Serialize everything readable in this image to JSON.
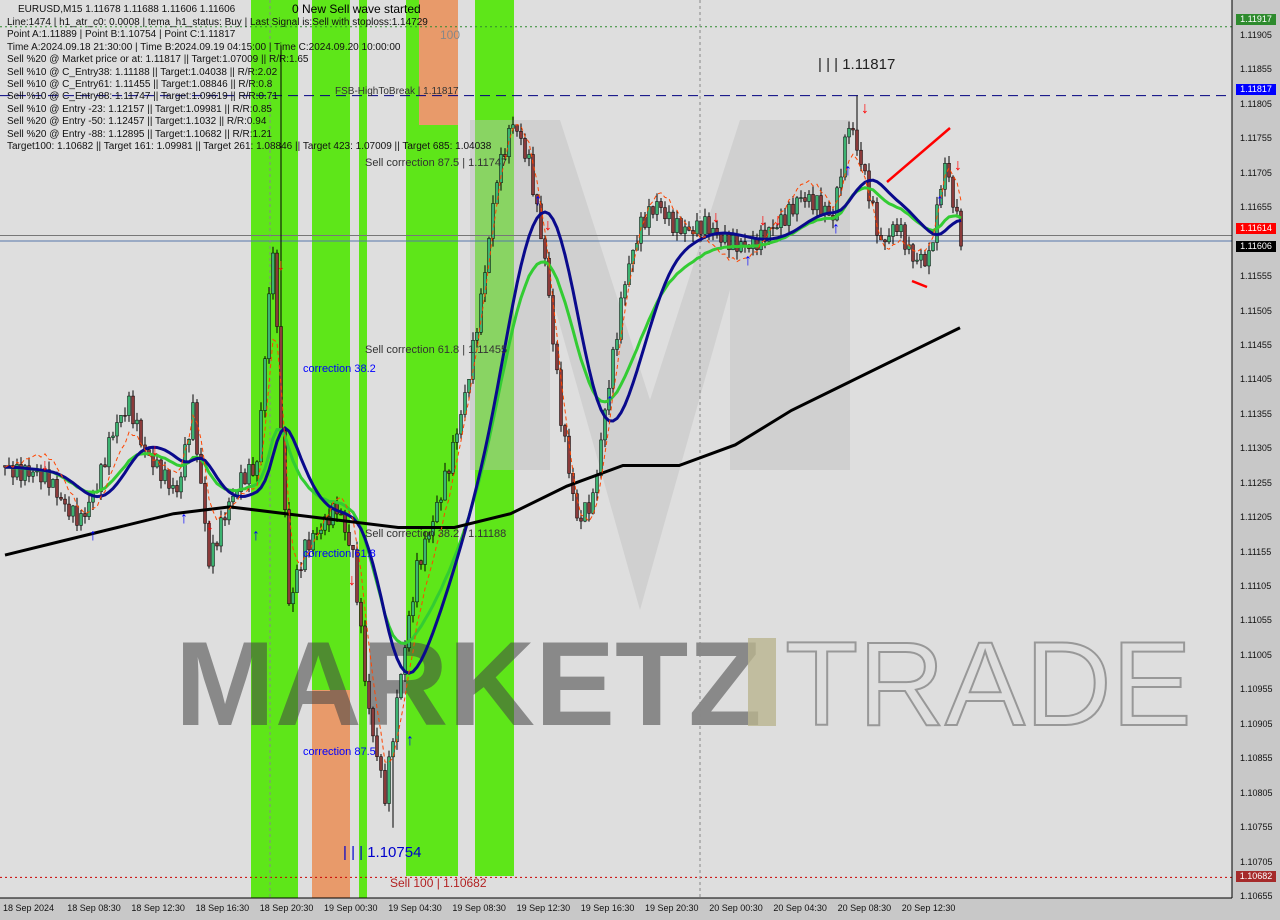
{
  "header": {
    "symbol_line": "EURUSD,M15  1.11678 1.11688 1.11606 1.11606",
    "wave_status": "0 New Sell wave started",
    "info_lines": [
      "Line:1474 | h1_atr_c0: 0.0008 | tema_h1_status: Buy | Last Signal is:Sell with stoploss:1.14729",
      "Point A:1.11889 | Point B:1.10754 | Point C:1.11817",
      "Time A:2024.09.18 21:30:00 | Time B:2024.09.19 04:15:00 | Time C:2024.09.20 10:00:00",
      "Sell %20 @ Market price or at: 1.11817 || Target:1.07009 || R/R:1.65",
      "Sell %10 @ C_Entry38: 1.11188 || Target:1.04038 || R/R:2.02",
      "Sell %10 @ C_Entry61: 1.11455 || Target:1.08846 || R/R:0.8",
      "Sell %10 @ C_Entry88: 1.11747 || Target:1.09619 || R/R:0.71",
      "Sell %10 @ Entry -23: 1.12157 || Target:1.09981 || R/R:0.85",
      "Sell %20 @ Entry -50: 1.12457 || Target:1.1032 || R/R:0.94",
      "Sell %20 @ Entry -88: 1.12895 || Target:1.10682 || R/R:1.21",
      "Target100: 1.10682 || Target 161: 1.09981 || Target 261: 1.08846 || Target 423: 1.07009 || Target 685: 1.04038"
    ]
  },
  "annotations": {
    "fsb": "FSB-HighToBreak | 1.11817",
    "level_100": "100",
    "point_c": "| | | 1.11817",
    "point_b": "| | | 1.10754",
    "sell_100": "Sell 100 | 1.10682",
    "sell_corr_875": "Sell correction 87.5 | 1.11747",
    "sell_corr_618": "Sell correction 61.8 | 1.11455",
    "sell_corr_382": "Sell correction 38.2 | 1.11188",
    "corr_382": "correction 38.2",
    "corr_618": "correction 61.8",
    "corr_875": "correction 87.5"
  },
  "watermark": {
    "left": "MARKETZ",
    "right": "TRADE"
  },
  "price_axis": {
    "ticks": [
      "1.11905",
      "1.11855",
      "1.11805",
      "1.11755",
      "1.11705",
      "1.11655",
      "1.11555",
      "1.11505",
      "1.11455",
      "1.11405",
      "1.11355",
      "1.11305",
      "1.11255",
      "1.11205",
      "1.11155",
      "1.11105",
      "1.11055",
      "1.11005",
      "1.10955",
      "1.10905",
      "1.10855",
      "1.10805",
      "1.10755",
      "1.10705",
      "1.10655"
    ],
    "tags": [
      {
        "value": "1.11917",
        "color": "#2e8b2e"
      },
      {
        "value": "1.11817",
        "color": "#0000ff"
      },
      {
        "value": "1.11614",
        "color": "#ff0000"
      },
      {
        "value": "1.11606",
        "color": "#000000"
      },
      {
        "value": "1.10682",
        "color": "#a52a2a"
      }
    ]
  },
  "time_axis": {
    "labels": [
      "18 Sep 2024",
      "18 Sep 08:30",
      "18 Sep 12:30",
      "18 Sep 16:30",
      "18 Sep 20:30",
      "19 Sep 00:30",
      "19 Sep 04:30",
      "19 Sep 08:30",
      "19 Sep 12:30",
      "19 Sep 16:30",
      "19 Sep 20:30",
      "20 Sep 00:30",
      "20 Sep 04:30",
      "20 Sep 08:30",
      "20 Sep 12:30"
    ]
  },
  "chart_data": {
    "type": "candlestick",
    "symbol": "EURUSD",
    "timeframe": "M15",
    "ylim": [
      1.10655,
      1.11925
    ],
    "hourly_close": [
      1.1128,
      1.1127,
      1.1127,
      1.1126,
      1.1122,
      1.112,
      1.1125,
      1.1133,
      1.1137,
      1.113,
      1.1127,
      1.1124,
      1.1136,
      1.1114,
      1.1121,
      1.1126,
      1.1128,
      1.116,
      1.1108,
      1.1116,
      1.1119,
      1.1122,
      1.1115,
      1.1092,
      1.108,
      1.1098,
      1.1113,
      1.112,
      1.1128,
      1.1138,
      1.1152,
      1.117,
      1.1178,
      1.1172,
      1.1158,
      1.1135,
      1.112,
      1.1123,
      1.114,
      1.1155,
      1.1163,
      1.1166,
      1.1163,
      1.1162,
      1.1163,
      1.1161,
      1.116,
      1.116,
      1.1162,
      1.1164,
      1.1167,
      1.1166,
      1.1164,
      1.1178,
      1.117,
      1.116,
      1.1163,
      1.1158,
      1.1158,
      1.1172,
      1.1161
    ],
    "long_ma": [
      1.1115,
      1.1117,
      1.1119,
      1.1121,
      1.1122,
      1.1121,
      1.112,
      1.1119,
      1.1119,
      1.1121,
      1.1125,
      1.1128,
      1.1128,
      1.1131,
      1.1136,
      1.114,
      1.1144,
      1.1148
    ],
    "levels": {
      "point_c": 1.11817,
      "point_b": 1.10754,
      "sell_100": 1.10682,
      "green_line": 1.11917
    },
    "colors": {
      "fast_ma": "#0a0a8c",
      "slow_ma": "#33cc33",
      "long_ma": "#000000",
      "zone_green": "#5ee619",
      "zone_orange": "#e89a6a"
    }
  }
}
